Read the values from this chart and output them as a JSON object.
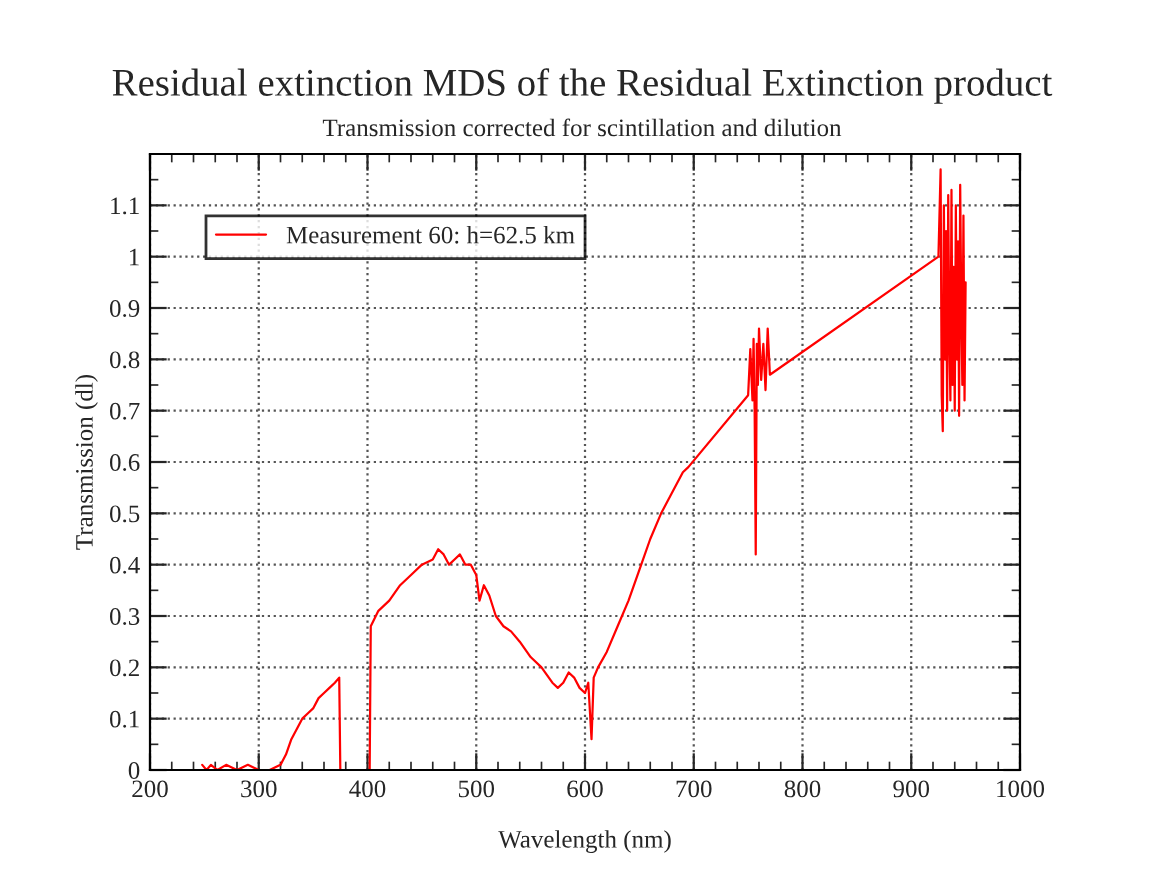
{
  "chart_data": {
    "type": "line",
    "title": "Residual extinction MDS of the Residual Extinction product",
    "subtitle": "Transmission corrected for scintillation and dilution",
    "xlabel": "Wavelength (nm)",
    "ylabel": "Transmission (dl)",
    "series": [
      {
        "name": "Measurement 60: h=62.5 km",
        "color": "#ff0000",
        "x": [
          248,
          252,
          256,
          262,
          270,
          280,
          290,
          300,
          310,
          320,
          325,
          330,
          335,
          340,
          345,
          350,
          355,
          360,
          365,
          370,
          374,
          375,
          390,
          402,
          403,
          410,
          420,
          430,
          440,
          450,
          460,
          465,
          470,
          475,
          480,
          485,
          490,
          495,
          500,
          503,
          507,
          512,
          518,
          525,
          532,
          540,
          550,
          560,
          570,
          575,
          580,
          585,
          590,
          595,
          600,
          603,
          606,
          608,
          612,
          620,
          630,
          640,
          650,
          660,
          670,
          680,
          690,
          695,
          750,
          752,
          754,
          755,
          756,
          757,
          758,
          759,
          760,
          762,
          764,
          766,
          768,
          770,
          925,
          927,
          928,
          929,
          930,
          931,
          932,
          933,
          934,
          935,
          936,
          937,
          938,
          939,
          940,
          941,
          942,
          943,
          944,
          945,
          946,
          947,
          948,
          949,
          950
        ],
        "values": [
          0.01,
          0.0,
          0.01,
          0.0,
          0.01,
          0.0,
          0.01,
          0.0,
          0.0,
          0.01,
          0.03,
          0.06,
          0.08,
          0.1,
          0.11,
          0.12,
          0.14,
          0.15,
          0.16,
          0.17,
          0.18,
          0.0,
          0.0,
          0.0,
          0.28,
          0.31,
          0.33,
          0.36,
          0.38,
          0.4,
          0.41,
          0.43,
          0.42,
          0.4,
          0.41,
          0.42,
          0.4,
          0.4,
          0.38,
          0.33,
          0.36,
          0.34,
          0.3,
          0.28,
          0.27,
          0.25,
          0.22,
          0.2,
          0.17,
          0.16,
          0.17,
          0.19,
          0.18,
          0.16,
          0.15,
          0.17,
          0.06,
          0.18,
          0.2,
          0.23,
          0.28,
          0.33,
          0.39,
          0.45,
          0.5,
          0.54,
          0.58,
          0.59,
          0.73,
          0.82,
          0.72,
          0.84,
          0.7,
          0.42,
          0.83,
          0.75,
          0.86,
          0.76,
          0.83,
          0.74,
          0.86,
          0.77,
          1.0,
          1.17,
          0.73,
          0.66,
          1.1,
          0.8,
          1.05,
          0.7,
          1.12,
          0.85,
          0.72,
          1.13,
          0.75,
          0.98,
          0.7,
          1.1,
          0.8,
          1.03,
          0.69,
          1.14,
          0.9,
          0.75,
          1.08,
          0.72,
          0.95
        ]
      }
    ],
    "xlim": [
      200,
      1000
    ],
    "xticks": [
      200,
      300,
      400,
      500,
      600,
      700,
      800,
      900,
      1000
    ],
    "ylim": [
      0,
      1.2
    ],
    "yticks": [
      0,
      0.1,
      0.2,
      0.3,
      0.4,
      0.5,
      0.6,
      0.7,
      0.8,
      0.9,
      1,
      1.1
    ],
    "grid": true,
    "legend": "top left",
    "line_style": "solid",
    "marker": "none"
  }
}
